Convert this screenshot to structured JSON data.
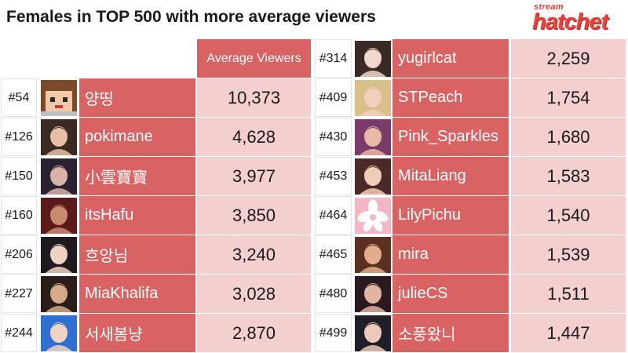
{
  "title": "Females in TOP 500 with more average viewers",
  "logo": {
    "small": "stream",
    "big": "hatchet"
  },
  "header": {
    "avg_label": "Average Viewers"
  },
  "colors": {
    "name_bg": "#d96262",
    "value_bg": "#f3cfcf",
    "logo": "#e8403c"
  },
  "chart_data": {
    "type": "table",
    "title": "Females in TOP 500 with more average viewers",
    "columns": [
      "",
      "",
      "",
      "Average Viewers"
    ],
    "rows": [
      {
        "rank": "#54",
        "name": "양띵",
        "avg_viewers": "10,373"
      },
      {
        "rank": "#126",
        "name": "pokimane",
        "avg_viewers": "4,628"
      },
      {
        "rank": "#150",
        "name": "小雲寶寶",
        "avg_viewers": "3,977"
      },
      {
        "rank": "#160",
        "name": "itsHafu",
        "avg_viewers": "3,850"
      },
      {
        "rank": "#206",
        "name": "흐앙님",
        "avg_viewers": "3,240"
      },
      {
        "rank": "#227",
        "name": "MiaKhalifa",
        "avg_viewers": "3,028"
      },
      {
        "rank": "#244",
        "name": "서새봄냥",
        "avg_viewers": "2,870"
      },
      {
        "rank": "#314",
        "name": "yugirlcat",
        "avg_viewers": "2,259"
      },
      {
        "rank": "#409",
        "name": "STPeach",
        "avg_viewers": "1,754"
      },
      {
        "rank": "#430",
        "name": "Pink_Sparkles",
        "avg_viewers": "1,680"
      },
      {
        "rank": "#453",
        "name": "MitaLiang",
        "avg_viewers": "1,583"
      },
      {
        "rank": "#464",
        "name": "LilyPichu",
        "avg_viewers": "1,540"
      },
      {
        "rank": "#465",
        "name": "mira",
        "avg_viewers": "1,539"
      },
      {
        "rank": "#480",
        "name": "julieCS",
        "avg_viewers": "1,511"
      },
      {
        "rank": "#499",
        "name": "소풍왔니",
        "avg_viewers": "1,447"
      }
    ]
  }
}
